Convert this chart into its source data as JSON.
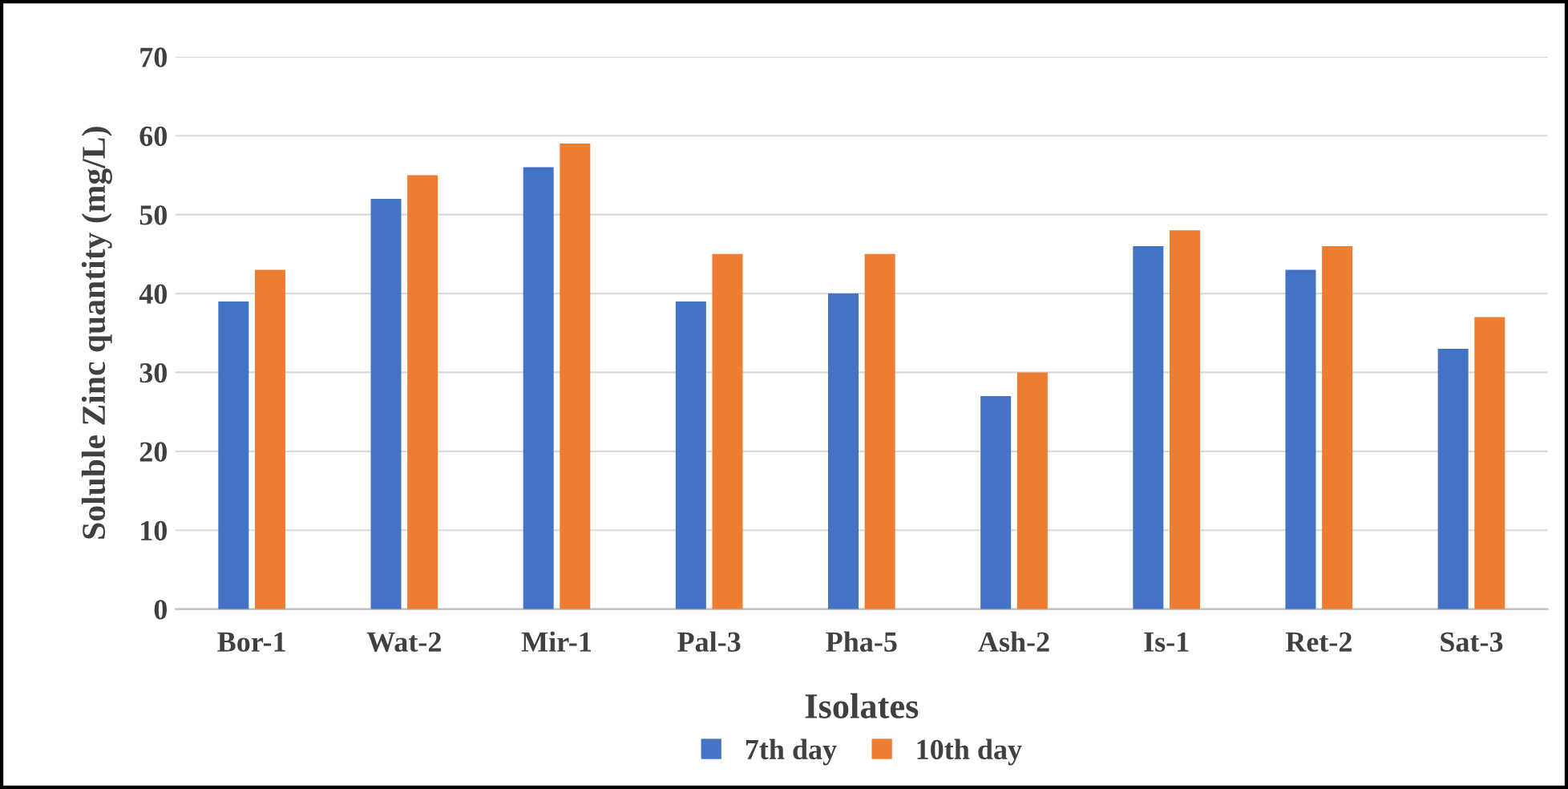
{
  "chart_data": {
    "type": "bar",
    "xlabel": "Isolates",
    "ylabel": "Soluble Zinc quantity (mg/L)",
    "categories": [
      "Bor-1",
      "Wat-2",
      "Mir-1",
      "Pal-3",
      "Pha-5",
      "Ash-2",
      "Is-1",
      "Ret-2",
      "Sat-3"
    ],
    "series": [
      {
        "name": "7th day",
        "color": "#4472c4",
        "values": [
          39,
          52,
          56,
          39,
          40,
          27,
          46,
          43,
          33
        ]
      },
      {
        "name": "10th day",
        "color": "#ed7d31",
        "values": [
          43,
          55,
          59,
          45,
          45,
          30,
          48,
          46,
          37
        ]
      }
    ],
    "ylim": [
      0,
      70
    ],
    "yticks": [
      0,
      10,
      20,
      30,
      40,
      50,
      60,
      70
    ],
    "grid": "y",
    "legend": "bottom"
  }
}
